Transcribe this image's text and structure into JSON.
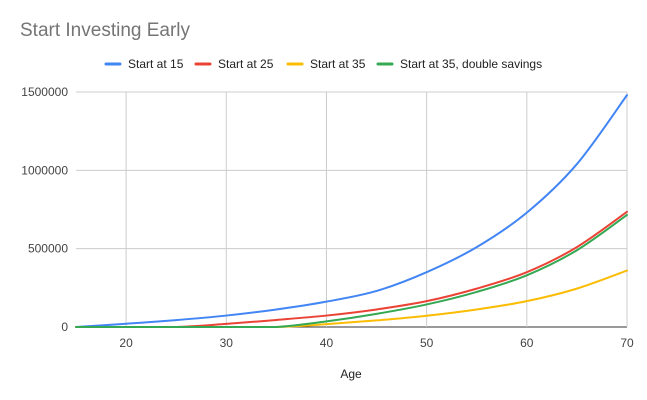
{
  "chart_data": {
    "type": "line",
    "title": "Start Investing Early",
    "xlabel": "Age",
    "ylabel": "",
    "xlim": [
      15,
      70
    ],
    "ylim": [
      0,
      1500000
    ],
    "x_ticks": [
      20,
      30,
      40,
      50,
      60,
      70
    ],
    "y_ticks": [
      0,
      500000,
      1000000,
      1500000
    ],
    "x_tick_labels": [
      "20",
      "30",
      "40",
      "50",
      "60",
      "70"
    ],
    "y_tick_labels": [
      "0",
      "500000",
      "1000000",
      "1500000"
    ],
    "grid": true,
    "legend": "top",
    "x": [
      15,
      20,
      25,
      30,
      35,
      40,
      45,
      50,
      55,
      60,
      65,
      70
    ],
    "series": [
      {
        "name": "Start at 15",
        "color": "#4285F4",
        "values": [
          0,
          21000,
          44000,
          73000,
          112000,
          162000,
          230000,
          350000,
          510000,
          730000,
          1040000,
          1480000
        ]
      },
      {
        "name": "Start at 25",
        "color": "#EA4335",
        "values": [
          0,
          0,
          0,
          20000,
          45000,
          73000,
          112000,
          165000,
          245000,
          350000,
          510000,
          735000
        ]
      },
      {
        "name": "Start at 35",
        "color": "#FBBC04",
        "values": [
          0,
          0,
          0,
          0,
          0,
          18000,
          42000,
          72000,
          112000,
          165000,
          245000,
          360000
        ]
      },
      {
        "name": "Start at 35, double savings",
        "color": "#34A853",
        "values": [
          0,
          0,
          0,
          0,
          0,
          36000,
          84000,
          144000,
          224000,
          330000,
          490000,
          715000
        ]
      }
    ]
  }
}
